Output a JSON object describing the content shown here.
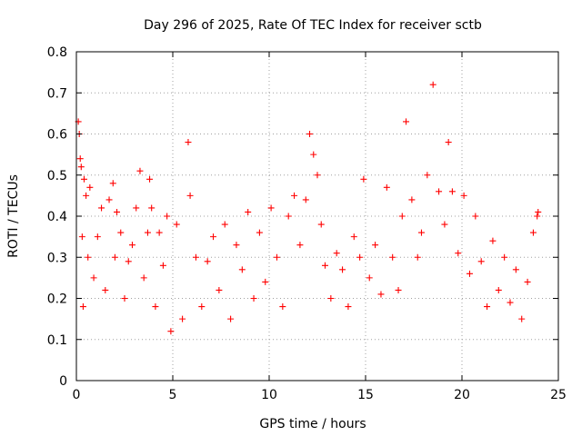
{
  "chart_data": {
    "type": "scatter",
    "title": "Day 296 of 2025, Rate Of TEC Index for receiver sctb",
    "xlabel": "GPS time / hours",
    "ylabel": "ROTI / TECUs",
    "xlim": [
      0,
      25
    ],
    "ylim": [
      0,
      0.8
    ],
    "xticks": [
      "0",
      "5",
      "10",
      "15",
      "20",
      "25"
    ],
    "yticks": [
      "0",
      "0.1",
      "0.2",
      "0.3",
      "0.4",
      "0.5",
      "0.6",
      "0.7",
      "0.8"
    ],
    "grid": true,
    "legend": "none",
    "marker": "plus",
    "color": "#ff0000",
    "series": [
      {
        "x": [
          0.1,
          0.15,
          0.2,
          0.25,
          0.3,
          0.35,
          0.4,
          0.5,
          0.6,
          0.7,
          0.9,
          1.1,
          1.3,
          1.5,
          1.7,
          1.9,
          2.0,
          2.1,
          2.3,
          2.5,
          2.7,
          2.9,
          3.1,
          3.3,
          3.5,
          3.7,
          3.8,
          3.9,
          4.1,
          4.3,
          4.5,
          4.7,
          4.9,
          5.2,
          5.5,
          5.8,
          5.9,
          6.2,
          6.5,
          6.8,
          7.1,
          7.4,
          7.7,
          8.0,
          8.3,
          8.6,
          8.9,
          9.2,
          9.5,
          9.8,
          10.1,
          10.4,
          10.7,
          11.0,
          11.3,
          11.6,
          11.9,
          12.1,
          12.3,
          12.5,
          12.7,
          12.9,
          13.2,
          13.5,
          13.8,
          14.1,
          14.4,
          14.7,
          14.9,
          15.2,
          15.5,
          15.8,
          16.1,
          16.4,
          16.7,
          16.9,
          17.1,
          17.4,
          17.7,
          17.9,
          18.2,
          18.5,
          18.8,
          19.1,
          19.3,
          19.5,
          19.8,
          20.1,
          20.4,
          20.7,
          21.0,
          21.3,
          21.6,
          21.9,
          22.2,
          22.5,
          22.8,
          23.1,
          23.4,
          23.7,
          23.9,
          23.95
        ],
        "y": [
          0.63,
          0.6,
          0.54,
          0.52,
          0.35,
          0.18,
          0.49,
          0.45,
          0.3,
          0.47,
          0.25,
          0.35,
          0.42,
          0.22,
          0.44,
          0.48,
          0.3,
          0.41,
          0.36,
          0.2,
          0.29,
          0.33,
          0.42,
          0.51,
          0.25,
          0.36,
          0.49,
          0.42,
          0.18,
          0.36,
          0.28,
          0.4,
          0.12,
          0.38,
          0.15,
          0.58,
          0.45,
          0.3,
          0.18,
          0.29,
          0.35,
          0.22,
          0.38,
          0.15,
          0.33,
          0.27,
          0.41,
          0.2,
          0.36,
          0.24,
          0.42,
          0.3,
          0.18,
          0.4,
          0.45,
          0.33,
          0.44,
          0.6,
          0.55,
          0.5,
          0.38,
          0.28,
          0.2,
          0.31,
          0.27,
          0.18,
          0.35,
          0.3,
          0.49,
          0.25,
          0.33,
          0.21,
          0.47,
          0.3,
          0.22,
          0.4,
          0.63,
          0.44,
          0.3,
          0.36,
          0.5,
          0.72,
          0.46,
          0.38,
          0.58,
          0.46,
          0.31,
          0.45,
          0.26,
          0.4,
          0.29,
          0.18,
          0.34,
          0.22,
          0.3,
          0.19,
          0.27,
          0.15,
          0.24,
          0.36,
          0.4,
          0.41
        ]
      }
    ]
  }
}
